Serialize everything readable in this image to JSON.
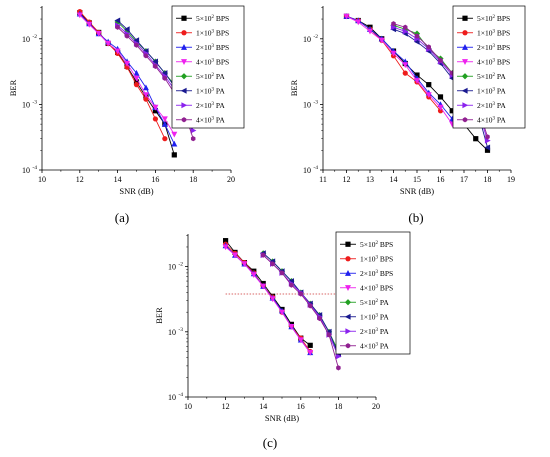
{
  "chart_data": [
    {
      "type": "line",
      "panel_label": "(a)",
      "xlabel": "SNR (dB)",
      "ylabel": "BER",
      "xlim": [
        10,
        20
      ],
      "xticks": [
        10,
        12,
        14,
        16,
        18,
        20
      ],
      "ylim_exp": [
        -4,
        -1.5
      ],
      "y_scale": "log",
      "yticks": [
        {
          "exp": -4,
          "label": "10"
        },
        {
          "exp": -3,
          "label": "10"
        },
        {
          "exp": -2,
          "label": "10"
        }
      ],
      "legend_position": "top-right",
      "series": [
        {
          "name": "5×10² BPS",
          "name_text": "5×10",
          "name_sup": "2",
          "name_suffix": " BPS",
          "color": "#000000",
          "marker": "square",
          "x": [
            12,
            12.5,
            13,
            13.5,
            14,
            14.5,
            15,
            15.5,
            16,
            16.5,
            17
          ],
          "y": [
            0.025,
            0.0175,
            0.0125,
            0.0085,
            0.0062,
            0.0038,
            0.0022,
            0.0013,
            0.0008,
            0.0005,
            0.00017
          ]
        },
        {
          "name": "1×10³ BPS",
          "name_text": "1×10",
          "name_sup": "3",
          "name_suffix": " BPS",
          "color": "#ee1c1c",
          "marker": "circle",
          "x": [
            12,
            12.5,
            13,
            13.5,
            14,
            14.5,
            15,
            15.5,
            16,
            16.5
          ],
          "y": [
            0.026,
            0.018,
            0.0125,
            0.0085,
            0.006,
            0.0037,
            0.002,
            0.0012,
            0.0006,
            0.0003
          ]
        },
        {
          "name": "2×10³ BPS",
          "name_text": "2×10",
          "name_sup": "3",
          "name_suffix": " BPS",
          "color": "#2020ee",
          "marker": "triangle-up",
          "x": [
            12,
            12.5,
            13,
            13.5,
            14,
            14.5,
            15,
            15.5,
            16,
            16.5,
            17
          ],
          "y": [
            0.024,
            0.017,
            0.012,
            0.009,
            0.007,
            0.0045,
            0.003,
            0.0018,
            0.0009,
            0.0005,
            0.00025
          ]
        },
        {
          "name": "4×10³ BPS",
          "name_text": "4×10",
          "name_sup": "3",
          "name_suffix": " BPS",
          "color": "#ee22ee",
          "marker": "triangle-down",
          "x": [
            12,
            12.5,
            13,
            13.5,
            14,
            14.5,
            15,
            15.5,
            16,
            16.5,
            17
          ],
          "y": [
            0.023,
            0.0165,
            0.012,
            0.0085,
            0.0065,
            0.0042,
            0.0025,
            0.0014,
            0.0009,
            0.0006,
            0.00035
          ]
        },
        {
          "name": "5×10² PA",
          "name_text": "5×10",
          "name_sup": "2",
          "name_suffix": " PA",
          "color": "#22a022",
          "marker": "diamond",
          "x": [
            14,
            14.5,
            15,
            15.5,
            16,
            16.5,
            17,
            17.5,
            18
          ],
          "y": [
            0.018,
            0.013,
            0.009,
            0.0065,
            0.0045,
            0.003,
            0.002,
            0.0011,
            0.0008
          ]
        },
        {
          "name": "1×10³ PA",
          "name_text": "1×10",
          "name_sup": "3",
          "name_suffix": " PA",
          "color": "#1a1a90",
          "marker": "triangle-left",
          "x": [
            14,
            14.5,
            15,
            15.5,
            16,
            16.5,
            17,
            17.5,
            18
          ],
          "y": [
            0.019,
            0.014,
            0.0095,
            0.0065,
            0.0045,
            0.003,
            0.0019,
            0.001,
            0.0005
          ]
        },
        {
          "name": "2×10³ PA",
          "name_text": "2×10",
          "name_sup": "3",
          "name_suffix": " PA",
          "color": "#8a22ee",
          "marker": "triangle-right",
          "x": [
            14,
            14.5,
            15,
            15.5,
            16,
            16.5,
            17,
            17.5,
            18
          ],
          "y": [
            0.016,
            0.012,
            0.0085,
            0.006,
            0.004,
            0.0027,
            0.0017,
            0.0009,
            0.0004
          ]
        },
        {
          "name": "4×10³ PA",
          "name_text": "4×10",
          "name_sup": "3",
          "name_suffix": " PA",
          "color": "#902090",
          "marker": "hexagon",
          "x": [
            14,
            14.5,
            15,
            15.5,
            16,
            16.5,
            17,
            17.5,
            18
          ],
          "y": [
            0.015,
            0.011,
            0.008,
            0.0055,
            0.0038,
            0.0025,
            0.0015,
            0.0008,
            0.0003
          ]
        }
      ]
    },
    {
      "type": "line",
      "panel_label": "(b)",
      "xlabel": "SNR (dB)",
      "ylabel": "BER",
      "xlim": [
        11,
        19
      ],
      "xticks": [
        11,
        12,
        13,
        14,
        15,
        16,
        17,
        18,
        19
      ],
      "ylim_exp": [
        -4,
        -1.5
      ],
      "y_scale": "log",
      "yticks": [
        {
          "exp": -4,
          "label": "10"
        },
        {
          "exp": -3,
          "label": "10"
        },
        {
          "exp": -2,
          "label": "10"
        }
      ],
      "legend_position": "top-right",
      "series": [
        {
          "name": "5×10² BPS",
          "name_text": "5×10",
          "name_sup": "2",
          "name_suffix": " BPS",
          "color": "#000000",
          "marker": "square",
          "x": [
            12,
            12.5,
            13,
            13.5,
            14,
            14.5,
            15,
            15.5,
            16,
            16.5,
            17,
            17.5,
            18
          ],
          "y": [
            0.022,
            0.019,
            0.015,
            0.01,
            0.0065,
            0.0042,
            0.0028,
            0.002,
            0.0013,
            0.0008,
            0.0005,
            0.0003,
            0.0002
          ]
        },
        {
          "name": "1×10³ BPS",
          "name_text": "1×10",
          "name_sup": "3",
          "name_suffix": " BPS",
          "color": "#ee1c1c",
          "marker": "circle",
          "x": [
            12,
            12.5,
            13,
            13.5,
            14,
            14.5,
            15,
            15.5,
            16
          ],
          "y": [
            0.022,
            0.019,
            0.014,
            0.0095,
            0.0055,
            0.003,
            0.0022,
            0.0013,
            0.0008
          ]
        },
        {
          "name": "2×10³ BPS",
          "name_text": "2×10",
          "name_sup": "3",
          "name_suffix": " BPS",
          "color": "#2020ee",
          "marker": "triangle-up",
          "x": [
            12,
            12.5,
            13,
            13.5,
            14,
            14.5,
            15,
            15.5,
            16,
            16.5
          ],
          "y": [
            0.022,
            0.019,
            0.014,
            0.01,
            0.0065,
            0.0045,
            0.0025,
            0.0015,
            0.001,
            0.0006
          ]
        },
        {
          "name": "4×10³ BPS",
          "name_text": "4×10",
          "name_sup": "3",
          "name_suffix": " BPS",
          "color": "#ee22ee",
          "marker": "triangle-down",
          "x": [
            12,
            12.5,
            13,
            13.5,
            14,
            14.5,
            15,
            15.5,
            16,
            16.5
          ],
          "y": [
            0.022,
            0.018,
            0.013,
            0.0095,
            0.006,
            0.004,
            0.0023,
            0.0014,
            0.0009,
            0.0005
          ]
        },
        {
          "name": "5×10² PA",
          "name_text": "5×10",
          "name_sup": "2",
          "name_suffix": " PA",
          "color": "#22a022",
          "marker": "diamond",
          "x": [
            14,
            14.5,
            15,
            15.5,
            16,
            16.5,
            17,
            17.5,
            18
          ],
          "y": [
            0.016,
            0.014,
            0.012,
            0.007,
            0.005,
            0.003,
            0.002,
            0.0014,
            0.0008
          ]
        },
        {
          "name": "1×10³ PA",
          "name_text": "1×10",
          "name_sup": "3",
          "name_suffix": " PA",
          "color": "#1a1a90",
          "marker": "triangle-left",
          "x": [
            14,
            14.5,
            15,
            15.5,
            16,
            16.5,
            17,
            17.5,
            18
          ],
          "y": [
            0.014,
            0.012,
            0.009,
            0.0065,
            0.0042,
            0.0025,
            0.0015,
            0.001,
            0.00022
          ]
        },
        {
          "name": "2×10³ PA",
          "name_text": "2×10",
          "name_sup": "3",
          "name_suffix": " PA",
          "color": "#8a22ee",
          "marker": "triangle-right",
          "x": [
            14,
            14.5,
            15,
            15.5,
            16,
            16.5,
            17,
            17.5,
            18
          ],
          "y": [
            0.015,
            0.013,
            0.01,
            0.007,
            0.0045,
            0.0028,
            0.0017,
            0.0011,
            0.00028
          ]
        },
        {
          "name": "4×10³ PA",
          "name_text": "4×10",
          "name_sup": "3",
          "name_suffix": " PA",
          "color": "#902090",
          "marker": "hexagon",
          "x": [
            14,
            14.5,
            15,
            15.5,
            16,
            16.5,
            17,
            17.5,
            18
          ],
          "y": [
            0.017,
            0.015,
            0.011,
            0.0075,
            0.0047,
            0.003,
            0.0018,
            0.0012,
            0.00032
          ]
        }
      ]
    },
    {
      "type": "line",
      "panel_label": "(c)",
      "xlabel": "SNR (dB)",
      "ylabel": "BER",
      "xlim": [
        10,
        20
      ],
      "xticks": [
        10,
        12,
        14,
        16,
        18,
        20
      ],
      "ylim_exp": [
        -4,
        -1.5
      ],
      "y_scale": "log",
      "yticks": [
        {
          "exp": -4,
          "label": "10"
        },
        {
          "exp": -3,
          "label": "10"
        },
        {
          "exp": -2,
          "label": "10"
        }
      ],
      "legend_position": "top-right",
      "reference_line": {
        "y": 0.0038,
        "x_range": [
          12,
          18
        ],
        "color": "#cc3333",
        "style": "dotted"
      },
      "series": [
        {
          "name": "5×10² BPS",
          "name_text": "5×10",
          "name_sup": "2",
          "name_suffix": " BPS",
          "color": "#000000",
          "marker": "square",
          "x": [
            12,
            12.5,
            13,
            13.5,
            14,
            14.5,
            15,
            15.5,
            16,
            16.5
          ],
          "y": [
            0.025,
            0.0165,
            0.0115,
            0.0085,
            0.0055,
            0.0035,
            0.0022,
            0.0013,
            0.0008,
            0.00062
          ]
        },
        {
          "name": "1×10³ BPS",
          "name_text": "1×10",
          "name_sup": "3",
          "name_suffix": " BPS",
          "color": "#ee1c1c",
          "marker": "circle",
          "x": [
            12,
            12.5,
            13,
            13.5,
            14,
            14.5,
            15,
            15.5,
            16,
            16.5
          ],
          "y": [
            0.022,
            0.016,
            0.0115,
            0.008,
            0.005,
            0.0034,
            0.002,
            0.0012,
            0.0008,
            0.0005
          ]
        },
        {
          "name": "2×10³ BPS",
          "name_text": "2×10",
          "name_sup": "3",
          "name_suffix": " BPS",
          "color": "#2020ee",
          "marker": "triangle-up",
          "x": [
            12,
            12.5,
            13,
            13.5,
            14,
            14.5,
            15,
            15.5,
            16,
            16.5
          ],
          "y": [
            0.021,
            0.015,
            0.011,
            0.0078,
            0.005,
            0.0033,
            0.0021,
            0.0012,
            0.00075,
            0.00048
          ]
        },
        {
          "name": "4×10³ BPS",
          "name_text": "4×10",
          "name_sup": "3",
          "name_suffix": " BPS",
          "color": "#ee22ee",
          "marker": "triangle-down",
          "x": [
            12,
            12.5,
            13,
            13.5,
            14,
            14.5,
            15,
            15.5,
            16,
            16.5
          ],
          "y": [
            0.02,
            0.015,
            0.011,
            0.0075,
            0.005,
            0.0032,
            0.002,
            0.0012,
            0.00075,
            0.00048
          ]
        },
        {
          "name": "5×10² PA",
          "name_text": "5×10",
          "name_sup": "2",
          "name_suffix": " PA",
          "color": "#22a022",
          "marker": "diamond",
          "x": [
            14,
            14.5,
            15,
            15.5,
            16,
            16.5,
            17,
            17.5,
            18
          ],
          "y": [
            0.016,
            0.012,
            0.0085,
            0.006,
            0.004,
            0.0027,
            0.0018,
            0.001,
            0.0005
          ]
        },
        {
          "name": "1×10³ PA",
          "name_text": "1×10",
          "name_sup": "3",
          "name_suffix": " PA",
          "color": "#1a1a90",
          "marker": "triangle-left",
          "x": [
            14,
            14.5,
            15,
            15.5,
            16,
            16.5,
            17,
            17.5,
            18
          ],
          "y": [
            0.016,
            0.012,
            0.0085,
            0.006,
            0.004,
            0.0027,
            0.0018,
            0.001,
            0.00045
          ]
        },
        {
          "name": "2×10³ PA",
          "name_text": "2×10",
          "name_sup": "3",
          "name_suffix": " PA",
          "color": "#8a22ee",
          "marker": "triangle-right",
          "x": [
            14,
            14.5,
            15,
            15.5,
            16,
            16.5,
            17,
            17.5,
            18
          ],
          "y": [
            0.015,
            0.011,
            0.008,
            0.0055,
            0.004,
            0.0026,
            0.0017,
            0.0009,
            0.00042
          ]
        },
        {
          "name": "4×10³ PA",
          "name_text": "4×10",
          "name_sup": "3",
          "name_suffix": " PA",
          "color": "#902090",
          "marker": "hexagon",
          "x": [
            14,
            14.5,
            15,
            15.5,
            16,
            16.5,
            17,
            17.5,
            18
          ],
          "y": [
            0.015,
            0.011,
            0.008,
            0.0052,
            0.0038,
            0.0025,
            0.0016,
            0.0009,
            0.00028
          ]
        }
      ]
    }
  ]
}
